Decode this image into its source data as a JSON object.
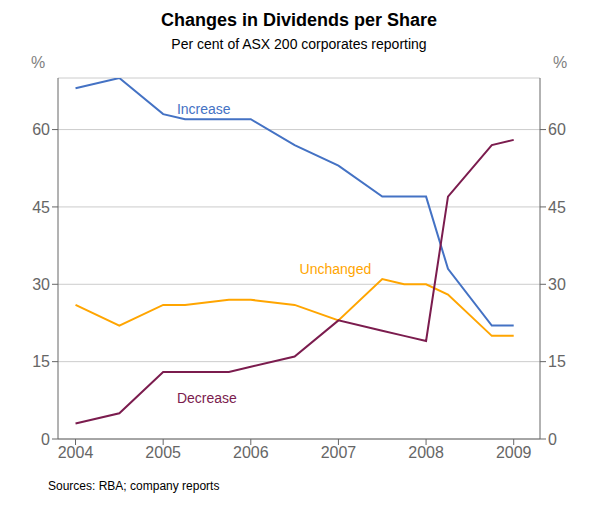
{
  "chart_data": {
    "type": "line",
    "title": "Changes in Dividends per Share",
    "subtitle": "Per cent of ASX 200 corporates reporting",
    "source": "Sources: RBA; company reports",
    "y_label": "%",
    "y2_label": "%",
    "x": [
      2004,
      2004.5,
      2005,
      2005.25,
      2005.75,
      2006,
      2006.5,
      2007,
      2007.5,
      2007.75,
      2008,
      2008.25,
      2008.75,
      2009
    ],
    "series": [
      {
        "name": "Increase",
        "color": "#4472C4",
        "values": [
          68,
          70,
          63,
          62,
          62,
          62,
          57,
          53,
          47,
          47,
          47,
          33,
          22,
          22
        ]
      },
      {
        "name": "Unchanged",
        "color": "#FFA500",
        "values": [
          26,
          22,
          26,
          26,
          27,
          27,
          26,
          23,
          31,
          30,
          30,
          28,
          20,
          20
        ]
      },
      {
        "name": "Decrease",
        "color": "#7B1C4E",
        "values": [
          3,
          5,
          13,
          13,
          13,
          14,
          16,
          23,
          21,
          20,
          19,
          47,
          57,
          58
        ]
      }
    ],
    "annotations": [
      {
        "text": "Increase",
        "x": 2005.1,
        "y": 64,
        "color": "#4472C4"
      },
      {
        "text": "Unchanged",
        "x": 2006.5,
        "y": 33,
        "color": "#FFA500"
      },
      {
        "text": "Decrease",
        "x": 2005.1,
        "y": 8,
        "color": "#7B1C4E"
      }
    ],
    "xlim": [
      2003.8,
      2009.3
    ],
    "xticks": [
      2004,
      2005,
      2006,
      2007,
      2008,
      2009
    ],
    "ylim": [
      0,
      70
    ],
    "yticks": [
      0,
      15,
      30,
      45,
      60
    ],
    "y2lim": [
      0,
      70
    ],
    "y2ticks": [
      0,
      15,
      30,
      45,
      60
    ],
    "grid": "y"
  }
}
